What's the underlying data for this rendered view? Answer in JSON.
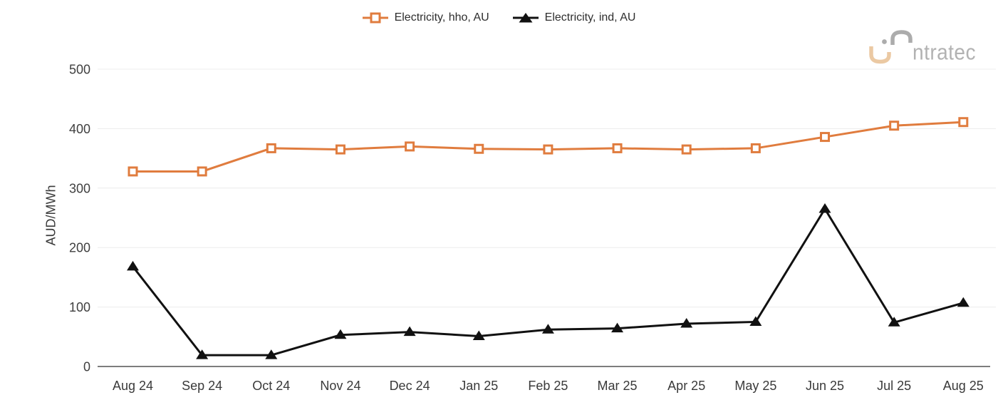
{
  "chart_data": {
    "type": "line",
    "title": "",
    "ylabel": "AUD/MWh",
    "xlabel": "",
    "ylim": [
      0,
      500
    ],
    "yticks": [
      0,
      100,
      200,
      300,
      400,
      500
    ],
    "grid": "horizontal",
    "legend_position": "top-center",
    "categories": [
      "Aug 24",
      "Sep 24",
      "Oct 24",
      "Nov 24",
      "Dec 24",
      "Jan 25",
      "Feb 25",
      "Mar 25",
      "Apr 25",
      "May 25",
      "Jun 25",
      "Jul 25",
      "Aug 25"
    ],
    "series": [
      {
        "name": "Electricity, hho, AU",
        "color": "#E07C3E",
        "marker": "square-open",
        "values": [
          328,
          328,
          367,
          365,
          370,
          366,
          365,
          367,
          365,
          367,
          386,
          405,
          411
        ]
      },
      {
        "name": "Electricity, ind, AU",
        "color": "#111111",
        "marker": "triangle-filled",
        "values": [
          168,
          19,
          19,
          53,
          58,
          51,
          62,
          64,
          72,
          75,
          265,
          74,
          107
        ]
      }
    ]
  },
  "branding": {
    "name": "intratec",
    "logo_text": "ntratec",
    "logo_gray": "#acacac",
    "logo_tan": "#ebc9a3"
  },
  "colors": {
    "background": "#ffffff",
    "gridline": "#ececec",
    "axis": "#7d7d7d",
    "tick_text": "#3f3f3f"
  }
}
